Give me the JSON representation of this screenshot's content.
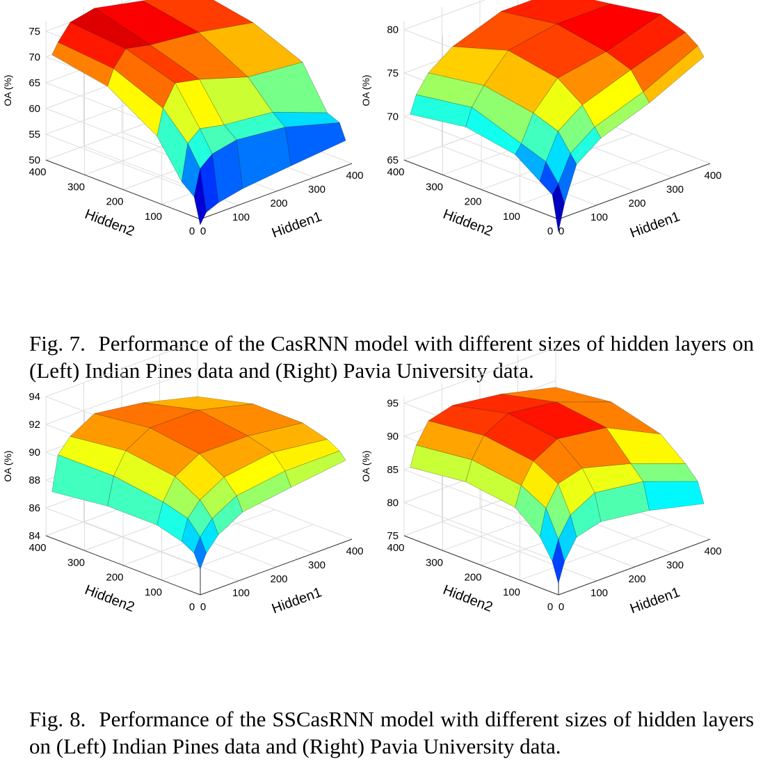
{
  "figures": [
    {
      "label": "Fig. 7.",
      "caption": "Performance of the CasRNN model with different sizes of hidden layers on (Left) Indian Pines data and (Right) Pavia University data."
    },
    {
      "label": "Fig. 8.",
      "caption": "Performance of the SSCasRNN model with different sizes of hidden layers on (Left) Indian Pines data and (Right) Pavia University data."
    }
  ],
  "chart_data": [
    {
      "type": "surface",
      "figure": "Fig. 7 (Left)",
      "xlabel": "Hidden1",
      "ylabel": "Hidden2",
      "zlabel": "OA (%)",
      "x_ticks": [
        "0",
        "100",
        "200",
        "300",
        "400"
      ],
      "y_ticks": [
        "0",
        "100",
        "200",
        "300",
        "400"
      ],
      "z_ticks": [
        "50",
        "55",
        "60",
        "65",
        "70",
        "75"
      ],
      "zlim": [
        50,
        77
      ],
      "grid": true,
      "colormap": "jet",
      "x": [
        16,
        32,
        64,
        128,
        256,
        400
      ],
      "y": [
        16,
        32,
        64,
        128,
        256,
        400
      ],
      "z": [
        [
          48,
          50,
          51,
          52,
          53,
          54
        ],
        [
          53,
          58,
          60,
          61,
          60,
          57
        ],
        [
          55,
          62,
          64,
          63,
          62,
          58
        ],
        [
          62,
          67,
          71,
          70,
          67,
          66
        ],
        [
          68,
          71,
          74,
          73,
          72,
          70
        ],
        [
          70,
          72,
          75,
          76,
          74,
          72
        ]
      ]
    },
    {
      "type": "surface",
      "figure": "Fig. 7 (Right)",
      "xlabel": "Hidden1",
      "ylabel": "Hidden2",
      "zlabel": "OA (%)",
      "x_ticks": [
        "0",
        "100",
        "200",
        "300",
        "400"
      ],
      "y_ticks": [
        "0",
        "100",
        "200",
        "300",
        "400"
      ],
      "z_ticks": [
        "65",
        "70",
        "75",
        "80"
      ],
      "zlim": [
        65,
        81
      ],
      "grid": true,
      "colormap": "jet",
      "x": [
        16,
        32,
        64,
        128,
        256,
        400
      ],
      "y": [
        16,
        32,
        64,
        128,
        256,
        400
      ],
      "z": [
        [
          63,
          66,
          70,
          72,
          74,
          77
        ],
        [
          67,
          68,
          71,
          73,
          75,
          78
        ],
        [
          68,
          70,
          73,
          75,
          77,
          79
        ],
        [
          70,
          71,
          74,
          77,
          78,
          80
        ],
        [
          71,
          73,
          75,
          78,
          79,
          79
        ],
        [
          70,
          72,
          74,
          76,
          78,
          78
        ]
      ]
    },
    {
      "type": "surface",
      "figure": "Fig. 8 (Left)",
      "xlabel": "Hidden1",
      "ylabel": "Hidden2",
      "zlabel": "OA (%)",
      "x_ticks": [
        "0",
        "100",
        "200",
        "300",
        "400"
      ],
      "y_ticks": [
        "0",
        "100",
        "200",
        "300",
        "400"
      ],
      "z_ticks": [
        "84",
        "86",
        "88",
        "90",
        "92",
        "94"
      ],
      "zlim": [
        84,
        94
      ],
      "grid": true,
      "colormap": "jet",
      "x": [
        16,
        32,
        64,
        128,
        256,
        400
      ],
      "y": [
        16,
        32,
        64,
        128,
        256,
        400
      ],
      "z": [
        [
          85.5,
          86.5,
          87.5,
          88.5,
          89.0,
          89.5
        ],
        [
          86.5,
          87.5,
          88.5,
          89.5,
          90.0,
          90.0
        ],
        [
          87.0,
          88.5,
          89.5,
          90.5,
          91.0,
          90.5
        ],
        [
          87.5,
          89.0,
          90.5,
          91.5,
          91.5,
          91.0
        ],
        [
          87.5,
          89.5,
          91.0,
          92.0,
          92.0,
          91.0
        ],
        [
          87.0,
          89.5,
          90.5,
          91.5,
          91.0,
          90.0
        ]
      ]
    },
    {
      "type": "surface",
      "figure": "Fig. 8 (Right)",
      "xlabel": "Hidden1",
      "ylabel": "Hidden2",
      "zlabel": "OA (%)",
      "x_ticks": [
        "0",
        "100",
        "200",
        "300",
        "400"
      ],
      "y_ticks": [
        "0",
        "100",
        "200",
        "300",
        "400"
      ],
      "z_ticks": [
        "75",
        "80",
        "85",
        "90",
        "95"
      ],
      "zlim": [
        75,
        96
      ],
      "grid": true,
      "colormap": "jet",
      "x": [
        16,
        32,
        64,
        128,
        256,
        400
      ],
      "y": [
        16,
        32,
        64,
        128,
        256,
        400
      ],
      "z": [
        [
          76,
          79,
          82,
          83,
          82,
          80
        ],
        [
          79,
          82,
          85,
          87,
          86,
          83
        ],
        [
          82,
          86,
          89,
          90,
          88,
          85
        ],
        [
          85,
          88,
          91,
          93,
          92,
          88
        ],
        [
          86,
          89,
          92,
          94,
          93,
          90
        ],
        [
          85,
          88,
          91,
          92,
          91,
          89
        ]
      ]
    }
  ]
}
